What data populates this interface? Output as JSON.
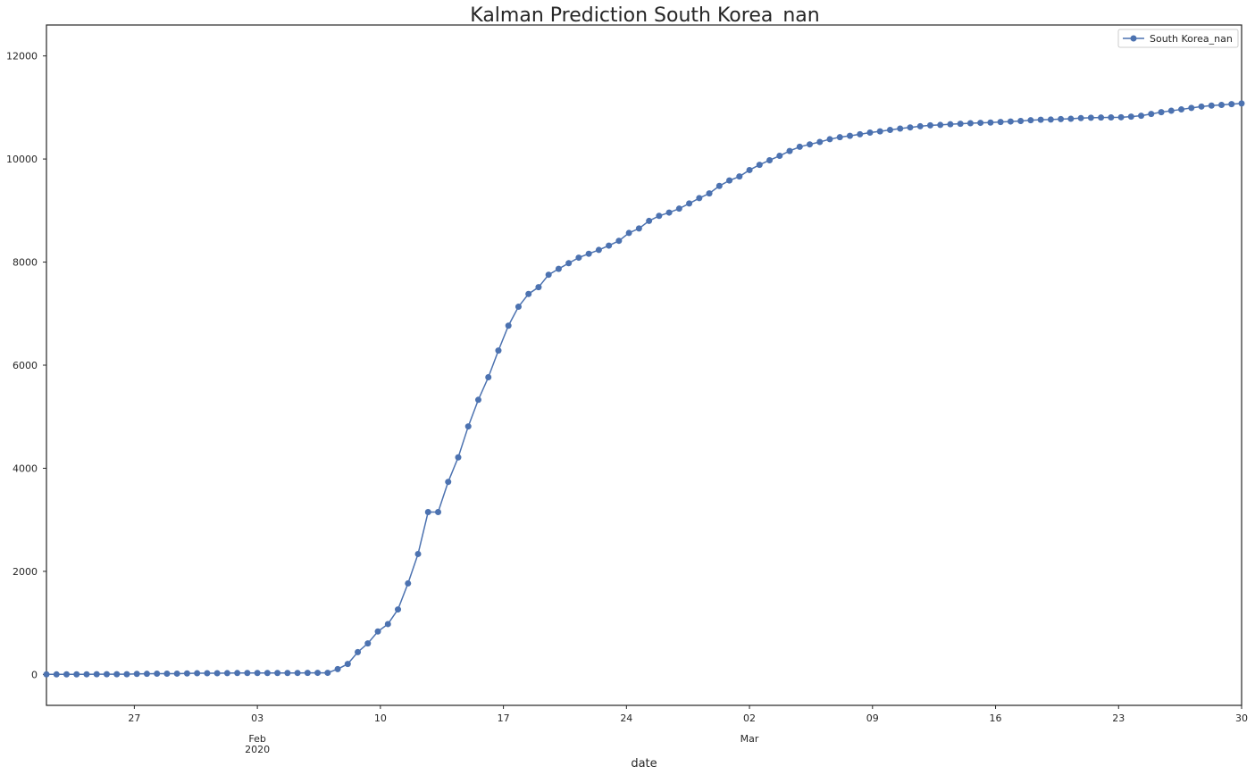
{
  "chart_data": {
    "type": "line",
    "title": "Kalman Prediction South Korea_nan",
    "xlabel": "date",
    "ylabel": "",
    "x_start": "2020-01-22",
    "x_end": "2020-03-30",
    "ylim": [
      -600,
      12600
    ],
    "yticks": [
      0,
      2000,
      4000,
      6000,
      8000,
      10000,
      12000
    ],
    "xticks": [
      {
        "date": "2020-01-27",
        "label": "27"
      },
      {
        "date": "2020-02-03",
        "label": "03",
        "sub1": "Feb",
        "sub2": "2020"
      },
      {
        "date": "2020-02-10",
        "label": "10"
      },
      {
        "date": "2020-02-17",
        "label": "17"
      },
      {
        "date": "2020-02-24",
        "label": "24"
      },
      {
        "date": "2020-03-02",
        "label": "02",
        "sub1": "Mar"
      },
      {
        "date": "2020-03-09",
        "label": "09"
      },
      {
        "date": "2020-03-16",
        "label": "16"
      },
      {
        "date": "2020-03-23",
        "label": "23"
      },
      {
        "date": "2020-03-30",
        "label": "30"
      }
    ],
    "grid": false,
    "legend_position": "top-right",
    "series": [
      {
        "name": "South Korea_nan",
        "color": "#4c72b0",
        "values": [
          1,
          1,
          2,
          2,
          3,
          4,
          4,
          4,
          4,
          11,
          12,
          15,
          15,
          16,
          19,
          23,
          24,
          24,
          25,
          27,
          28,
          28,
          28,
          28,
          28,
          29,
          30,
          31,
          31,
          104,
          204,
          433,
          602,
          833,
          977,
          1261,
          1766,
          2337,
          3150,
          3150,
          3736,
          4212,
          4812,
          5328,
          5766,
          6284,
          6767,
          7134,
          7382,
          7513,
          7755,
          7869,
          7979,
          8086,
          8162,
          8236,
          8320,
          8413,
          8565,
          8652,
          8799,
          8897,
          8961,
          9037,
          9137,
          9241,
          9332,
          9478,
          9583,
          9661,
          9786,
          9887,
          9976,
          10062,
          10156,
          10237,
          10284,
          10331,
          10384,
          10423,
          10450,
          10480,
          10512,
          10537,
          10564,
          10591,
          10613,
          10635,
          10653,
          10661,
          10674,
          10683,
          10694,
          10702,
          10708,
          10718,
          10728,
          10738,
          10752,
          10761,
          10765,
          10774,
          10780,
          10793,
          10801,
          10804,
          10806,
          10810,
          10822,
          10840,
          10874,
          10909,
          10936,
          10962,
          10991,
          11018,
          11037,
          11050,
          11065,
          11078
        ]
      }
    ]
  }
}
